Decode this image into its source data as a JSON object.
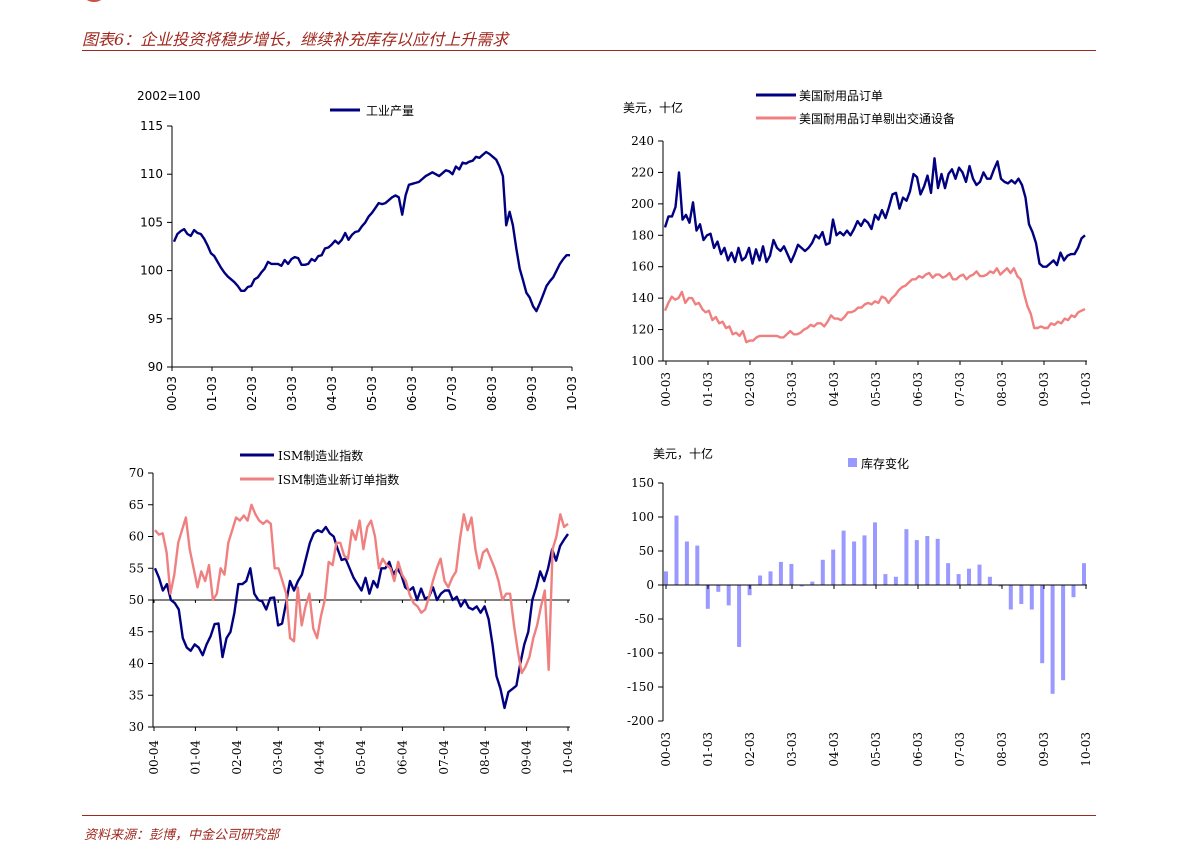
{
  "header": {
    "title": "图表6：企业投资将稳步增长，继续补充库存以应付上升需求"
  },
  "footer": {
    "source": "资料来源：彭博，中金公司研究部"
  },
  "colors": {
    "accent": "#a0281e",
    "navy": "#000080",
    "pink": "#f08080",
    "lavender": "#9999ff"
  },
  "chart_data": [
    {
      "id": "ip",
      "type": "line",
      "unit_label": "2002=100",
      "x_tick_labels": [
        "00-03",
        "01-03",
        "02-03",
        "03-03",
        "04-03",
        "05-03",
        "06-03",
        "07-03",
        "08-03",
        "09-03",
        "10-03"
      ],
      "ylim": [
        90,
        115
      ],
      "y_ticks": [
        90,
        95,
        100,
        105,
        110,
        115
      ],
      "legend_position": "top-center",
      "series": [
        {
          "name": "工业产量",
          "color": "#000080",
          "values": [
            103.0,
            103.8,
            104.1,
            104.3,
            103.8,
            103.6,
            104.2,
            103.9,
            103.8,
            103.3,
            102.6,
            101.8,
            101.5,
            100.9,
            100.3,
            99.8,
            99.4,
            99.1,
            98.8,
            98.4,
            97.9,
            97.9,
            98.3,
            98.4,
            99.1,
            99.3,
            99.8,
            100.2,
            100.9,
            100.7,
            100.7,
            100.7,
            100.5,
            101.1,
            100.7,
            101.2,
            101.4,
            101.3,
            100.6,
            100.6,
            100.7,
            101.2,
            101.0,
            101.5,
            101.6,
            102.3,
            102.4,
            102.7,
            103.1,
            102.8,
            103.2,
            103.9,
            103.2,
            103.7,
            104.0,
            104.1,
            104.6,
            105.0,
            105.6,
            106.0,
            106.5,
            107.0,
            106.9,
            107.0,
            107.3,
            107.6,
            107.8,
            107.6,
            105.8,
            107.8,
            108.9,
            109.0,
            109.1,
            109.2,
            109.5,
            109.8,
            110.0,
            110.2,
            110.0,
            109.8,
            110.1,
            110.4,
            110.3,
            110.0,
            110.8,
            110.5,
            111.2,
            111.1,
            111.3,
            111.4,
            111.8,
            111.7,
            112.0,
            112.3,
            112.1,
            111.8,
            111.5,
            110.8,
            109.8,
            104.7,
            106.1,
            104.7,
            102.3,
            100.2,
            99.0,
            97.7,
            97.2,
            96.3,
            95.8,
            96.6,
            97.5,
            98.4,
            98.9,
            99.3,
            100.0,
            100.7,
            101.2,
            101.6,
            101.6
          ]
        }
      ]
    },
    {
      "id": "durable",
      "type": "line",
      "unit_label": "美元，十亿",
      "x_tick_labels": [
        "00-03",
        "01-03",
        "02-03",
        "03-03",
        "04-03",
        "05-03",
        "06-03",
        "07-03",
        "08-03",
        "09-03",
        "10-03"
      ],
      "ylim": [
        100,
        240
      ],
      "y_ticks": [
        100,
        120,
        140,
        160,
        180,
        200,
        220,
        240
      ],
      "legend_position": "top-right",
      "series": [
        {
          "name": "美国耐用品订单",
          "color": "#000080",
          "values": [
            185,
            192,
            192,
            198,
            220,
            190,
            193,
            188,
            201,
            183,
            187,
            177,
            180,
            181,
            172,
            176,
            168,
            172,
            164,
            169,
            163,
            172,
            164,
            166,
            172,
            162,
            171,
            164,
            173,
            163,
            167,
            177,
            172,
            170,
            173,
            168,
            163,
            168,
            174,
            172,
            170,
            172,
            175,
            180,
            178,
            182,
            174,
            175,
            190,
            180,
            182,
            180,
            183,
            180,
            184,
            189,
            186,
            190,
            188,
            184,
            193,
            190,
            196,
            191,
            198,
            206,
            207,
            197,
            204,
            202,
            208,
            219,
            217,
            206,
            211,
            218,
            207,
            229,
            210,
            219,
            210,
            219,
            222,
            216,
            223,
            220,
            214,
            224,
            216,
            212,
            214,
            220,
            216,
            216,
            222,
            227,
            216,
            214,
            213,
            215,
            213,
            216,
            212,
            204,
            187,
            182,
            175,
            162,
            160,
            160,
            162,
            164,
            161,
            169,
            164,
            167,
            168,
            168,
            172,
            178,
            180
          ]
        },
        {
          "name": "美国耐用品订单剔出交通设备",
          "color": "#f08080",
          "values": [
            132,
            137,
            141,
            139,
            140,
            144,
            137,
            140,
            140,
            136,
            137,
            133,
            131,
            132,
            126,
            128,
            124,
            125,
            121,
            122,
            117,
            118,
            116,
            119,
            112,
            113,
            113,
            115,
            116,
            116,
            116,
            116,
            116,
            116,
            115,
            115,
            117,
            119,
            117,
            117,
            118,
            120,
            121,
            123,
            122,
            124,
            124,
            122,
            125,
            129,
            127,
            127,
            126,
            128,
            131,
            131,
            132,
            134,
            134,
            136,
            137,
            136,
            138,
            137,
            141,
            140,
            137,
            140,
            142,
            145,
            147,
            148,
            150,
            152,
            152,
            154,
            153,
            155,
            156,
            153,
            155,
            155,
            153,
            154,
            156,
            152,
            152,
            154,
            155,
            152,
            154,
            155,
            157,
            154,
            154,
            155,
            157,
            156,
            159,
            155,
            157,
            159,
            156,
            159,
            154,
            152,
            143,
            135,
            130,
            121,
            121,
            122,
            121,
            121,
            124,
            123,
            125,
            124,
            127,
            126,
            129,
            128,
            131,
            132,
            133
          ]
        }
      ]
    },
    {
      "id": "ism",
      "type": "line",
      "unit_label": "",
      "x_tick_labels": [
        "00-04",
        "01-04",
        "02-04",
        "03-04",
        "04-04",
        "05-04",
        "06-04",
        "07-04",
        "08-04",
        "09-04",
        "10-04"
      ],
      "ylim": [
        30,
        70
      ],
      "y_ticks": [
        30,
        35,
        40,
        45,
        50,
        55,
        60,
        65,
        70
      ],
      "reference_line": 50,
      "legend_position": "top-left",
      "series": [
        {
          "name": "ISM制造业指数",
          "color": "#000080",
          "values": [
            55,
            53.5,
            51.5,
            52.5,
            50,
            49.5,
            48.5,
            44,
            42.5,
            42,
            43,
            42.5,
            41.3,
            43,
            44.3,
            46.2,
            46.3,
            41,
            44,
            45,
            48,
            52.5,
            52.5,
            53,
            55,
            51,
            50,
            49.8,
            48.5,
            50.3,
            50.4,
            46,
            46.3,
            49.5,
            53,
            51.5,
            53,
            54,
            56.5,
            59,
            60.5,
            61,
            60.7,
            61.5,
            60.5,
            60,
            58,
            56.3,
            56.5,
            55,
            53.5,
            52.5,
            51.5,
            53.5,
            51,
            53,
            52,
            55,
            55,
            56,
            54,
            55,
            54,
            52,
            51.5,
            52,
            50,
            51.8,
            50.2,
            50.5,
            52,
            50,
            51,
            51.5,
            51.5,
            50,
            50.5,
            49,
            50,
            48.8,
            48.5,
            49,
            48,
            49,
            47,
            43,
            38,
            36,
            33,
            35.5,
            36,
            36.5,
            40,
            43,
            45,
            50,
            52,
            54.5,
            53,
            55,
            58,
            56.2,
            58.5,
            59.5,
            60.4
          ]
        },
        {
          "name": "ISM制造业新订单指数",
          "color": "#f08080",
          "values": [
            61,
            60.3,
            60.5,
            57.5,
            51,
            54,
            59,
            61,
            63,
            58,
            55,
            52,
            54.5,
            53,
            55.5,
            50,
            51,
            55,
            54,
            59,
            61,
            63,
            62.5,
            63.3,
            62.5,
            65,
            63.5,
            62.5,
            62,
            62.5,
            62,
            55,
            55,
            53,
            51,
            44,
            43.5,
            52,
            46,
            49,
            51,
            45.5,
            44,
            47.5,
            50,
            56,
            55.5,
            59,
            59,
            57,
            56.5,
            61,
            59.5,
            62.5,
            58,
            61.5,
            62.5,
            60,
            55,
            56.5,
            55.5,
            55,
            53,
            56,
            54,
            53,
            50.8,
            49.5,
            49,
            48,
            48.5,
            50.5,
            53,
            55,
            56.5,
            53,
            52,
            53.5,
            54.5,
            59.5,
            63.5,
            61,
            63,
            58,
            55,
            57.5,
            58,
            56.5,
            55,
            53,
            50,
            51,
            51,
            46,
            42,
            38.5,
            39.5,
            41,
            44,
            46,
            49,
            51.5,
            39,
            58,
            60,
            63.5,
            61.5,
            62
          ]
        }
      ]
    },
    {
      "id": "inventory",
      "type": "bar",
      "unit_label": "美元，十亿",
      "x_tick_labels": [
        "00-03",
        "01-03",
        "02-03",
        "03-03",
        "04-03",
        "05-03",
        "06-03",
        "07-03",
        "08-03",
        "09-03",
        "10-03"
      ],
      "ylim": [
        -200,
        150
      ],
      "y_ticks": [
        -200,
        -150,
        -100,
        -50,
        0,
        50,
        100,
        150
      ],
      "legend_position": "top-center",
      "series": [
        {
          "name": "库存变化",
          "color": "#9999ff",
          "values": [
            20,
            102,
            64,
            58,
            -35,
            -10,
            -30,
            -91,
            -15,
            14,
            20,
            34,
            31,
            -2,
            5,
            37,
            52,
            80,
            64,
            73,
            92,
            16,
            12,
            82,
            66,
            72,
            68,
            32,
            16,
            24,
            30,
            12,
            -2,
            -36,
            -28,
            -36,
            -115,
            -160,
            -140,
            -18,
            32
          ]
        }
      ]
    }
  ]
}
